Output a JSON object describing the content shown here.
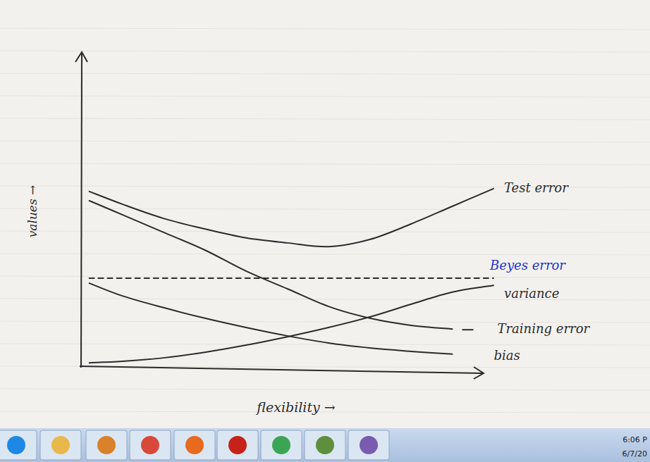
{
  "chart_data": {
    "type": "line",
    "x_label": "flexibility →",
    "y_label": "values →",
    "x": [
      0.2,
      1,
      2,
      3,
      4,
      5,
      6,
      7,
      8,
      9,
      10
    ],
    "xlim": [
      0,
      10
    ],
    "ylim": [
      0,
      10
    ],
    "tick_labels": false,
    "grid": false,
    "series": [
      {
        "name": "Test error",
        "color": "#2b2b2b",
        "line_style": "solid",
        "values": [
          5.64,
          5.23,
          4.77,
          4.43,
          4.14,
          3.98,
          3.86,
          4.09,
          4.59,
          5.16,
          5.73
        ]
      },
      {
        "name": "Training error",
        "color": "#2b2b2b",
        "line_style": "solid",
        "values": [
          5.34,
          4.89,
          4.32,
          3.75,
          3.07,
          2.5,
          1.93,
          1.55,
          1.32,
          1.2,
          null
        ]
      },
      {
        "name": "variance",
        "color": "#2b2b2b",
        "line_style": "solid",
        "values": [
          0.11,
          0.16,
          0.27,
          0.45,
          0.68,
          0.95,
          1.25,
          1.59,
          2.0,
          2.39,
          2.61
        ]
      },
      {
        "name": "bias",
        "color": "#2b2b2b",
        "line_style": "solid",
        "values": [
          2.68,
          2.27,
          1.89,
          1.55,
          1.25,
          0.98,
          0.75,
          0.59,
          0.48,
          0.39,
          null
        ]
      },
      {
        "name": "Beyes error",
        "color": "#2b2b2b",
        "line_style": "dashed",
        "values": [
          2.84,
          2.84,
          2.84,
          2.84,
          2.84,
          2.84,
          2.84,
          2.84,
          2.84,
          2.84,
          2.84
        ]
      }
    ]
  },
  "taskbar": {
    "clock": [
      "6:06 P",
      "6/7/20"
    ]
  }
}
